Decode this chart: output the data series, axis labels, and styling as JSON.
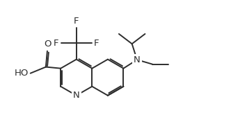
{
  "line_color": "#2d2d2d",
  "bg_color": "#ffffff",
  "bond_lw": 1.4,
  "font_size": 9.5,
  "figsize": [
    3.32,
    1.76
  ],
  "dpi": 100,
  "xlim": [
    -0.5,
    10.5
  ],
  "ylim": [
    -0.3,
    5.6
  ]
}
